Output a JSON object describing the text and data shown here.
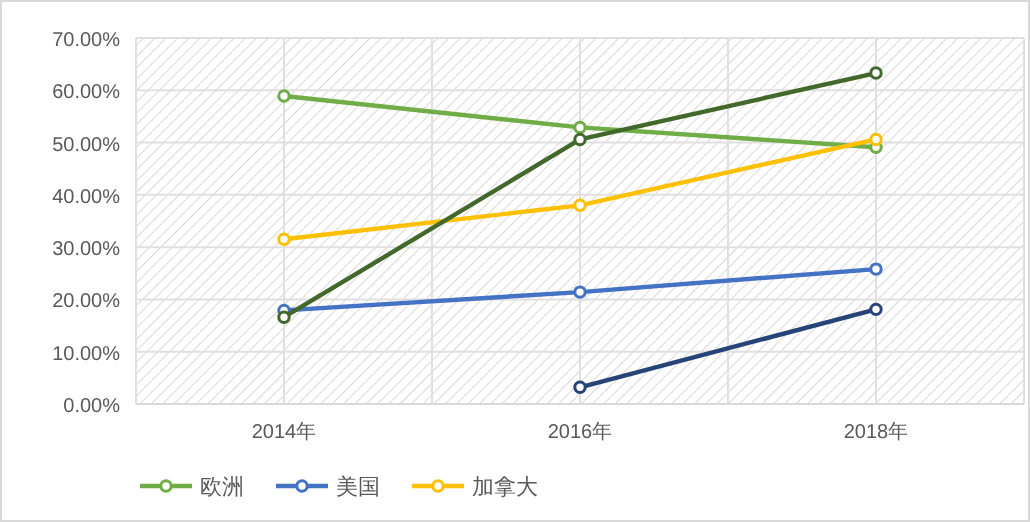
{
  "chart_data": {
    "type": "line",
    "categories": [
      "2014年",
      "2016年",
      "2018年"
    ],
    "series": [
      {
        "name": "欧洲",
        "color": "#70ad47",
        "values": [
          58.9,
          52.9,
          49.1
        ]
      },
      {
        "name": "美国",
        "color": "#4472c4",
        "values": [
          17.9,
          21.4,
          25.8
        ]
      },
      {
        "name": "加拿大",
        "color": "#ffc000",
        "values": [
          31.5,
          38.0,
          50.6
        ]
      },
      {
        "color": "#43682b",
        "values": [
          16.6,
          50.6,
          63.3
        ]
      },
      {
        "color": "#264478",
        "values": [
          null,
          3.2,
          18.1
        ]
      }
    ],
    "ylim": [
      0,
      70
    ],
    "yticks": [
      {
        "value": 0,
        "label": "0.00%"
      },
      {
        "value": 10,
        "label": "10.00%"
      },
      {
        "value": 20,
        "label": "20.00%"
      },
      {
        "value": 30,
        "label": "30.00%"
      },
      {
        "value": 40,
        "label": "40.00%"
      },
      {
        "value": 50,
        "label": "50.00%"
      },
      {
        "value": 60,
        "label": "60.00%"
      },
      {
        "value": 70,
        "label": "70.00%"
      }
    ],
    "grid": true,
    "legend": "bottom",
    "marker": "circle",
    "line_style": "solid"
  }
}
